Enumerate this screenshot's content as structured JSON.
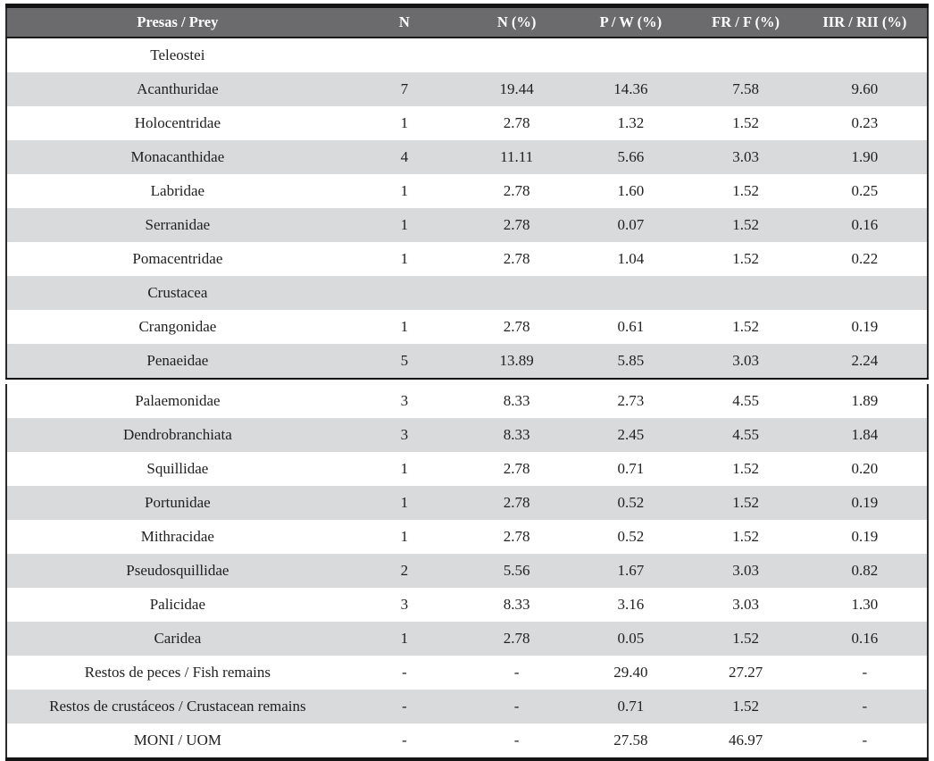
{
  "colors": {
    "header_bg": "#6b6b6d",
    "header_text": "#ffffff",
    "row_shaded_bg": "#d9dadb",
    "row_text": "#1f1f1f",
    "border": "#141414"
  },
  "table": {
    "columns": [
      "Presas / Prey",
      "N",
      "N (%)",
      "P / W (%)",
      "FR / F (%)",
      "IIR / RII (%)"
    ],
    "blocks": [
      {
        "rows": [
          {
            "cells": [
              "Teleostei",
              "",
              "",
              "",
              "",
              ""
            ],
            "group": true
          },
          {
            "cells": [
              "Acanthuridae",
              "7",
              "19.44",
              "14.36",
              "7.58",
              "9.60"
            ]
          },
          {
            "cells": [
              "Holocentridae",
              "1",
              "2.78",
              "1.32",
              "1.52",
              "0.23"
            ]
          },
          {
            "cells": [
              "Monacanthidae",
              "4",
              "11.11",
              "5.66",
              "3.03",
              "1.90"
            ]
          },
          {
            "cells": [
              "Labridae",
              "1",
              "2.78",
              "1.60",
              "1.52",
              "0.25"
            ]
          },
          {
            "cells": [
              "Serranidae",
              "1",
              "2.78",
              "0.07",
              "1.52",
              "0.16"
            ]
          },
          {
            "cells": [
              "Pomacentridae",
              "1",
              "2.78",
              "1.04",
              "1.52",
              "0.22"
            ]
          },
          {
            "cells": [
              "Crustacea",
              "",
              "",
              "",
              "",
              ""
            ],
            "group": true
          },
          {
            "cells": [
              "Crangonidae",
              "1",
              "2.78",
              "0.61",
              "1.52",
              "0.19"
            ]
          },
          {
            "cells": [
              "Penaeidae",
              "5",
              "13.89",
              "5.85",
              "3.03",
              "2.24"
            ]
          }
        ]
      },
      {
        "rows": [
          {
            "cells": [
              "Palaemonidae",
              "3",
              "8.33",
              "2.73",
              "4.55",
              "1.89"
            ]
          },
          {
            "cells": [
              "Dendrobranchiata",
              "3",
              "8.33",
              "2.45",
              "4.55",
              "1.84"
            ]
          },
          {
            "cells": [
              "Squillidae",
              "1",
              "2.78",
              "0.71",
              "1.52",
              "0.20"
            ]
          },
          {
            "cells": [
              "Portunidae",
              "1",
              "2.78",
              "0.52",
              "1.52",
              "0.19"
            ]
          },
          {
            "cells": [
              "Mithracidae",
              "1",
              "2.78",
              "0.52",
              "1.52",
              "0.19"
            ]
          },
          {
            "cells": [
              "Pseudosquillidae",
              "2",
              "5.56",
              "1.67",
              "3.03",
              "0.82"
            ]
          },
          {
            "cells": [
              "Palicidae",
              "3",
              "8.33",
              "3.16",
              "3.03",
              "1.30"
            ]
          },
          {
            "cells": [
              "Caridea",
              "1",
              "2.78",
              "0.05",
              "1.52",
              "0.16"
            ]
          },
          {
            "cells": [
              "Restos de peces / Fish remains",
              "-",
              "-",
              "29.40",
              "27.27",
              "-"
            ]
          },
          {
            "cells": [
              "Restos de crustáceos / Crustacean remains",
              "-",
              "-",
              "0.71",
              "1.52",
              "-"
            ]
          },
          {
            "cells": [
              "MONI / UOM",
              "-",
              "-",
              "27.58",
              "46.97",
              "-"
            ]
          }
        ]
      }
    ]
  }
}
